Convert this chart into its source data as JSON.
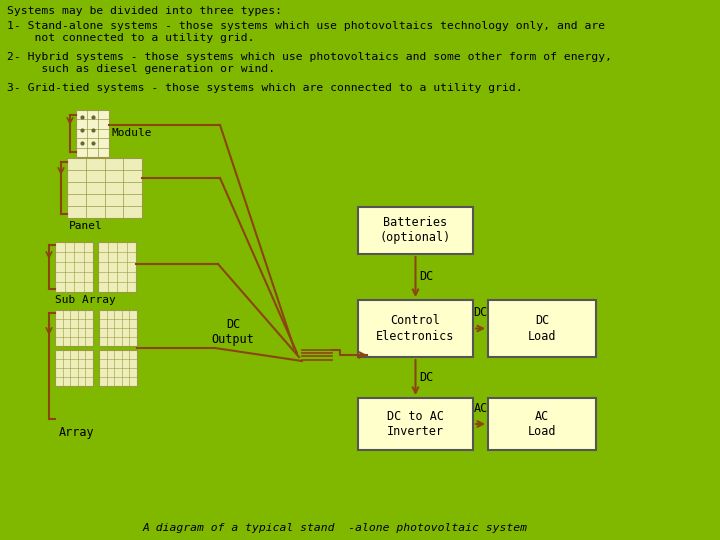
{
  "bg_color": "#80B800",
  "text_color": "#000000",
  "box_fill": "#FFFFCC",
  "brown": "#8B4513",
  "title_text": "Systems may be divided into three types:",
  "line1a": "1- Stand-alone systems - those systems which use photovoltaics technology only, and are",
  "line1b": "    not connected to a utility grid.",
  "line2a": "2- Hybrid systems - those systems which use photovoltaics and some other form of energy,",
  "line2b": "     such as diesel generation or wind.",
  "line3": "3- Grid-tied systems - those systems which are connected to a utility grid.",
  "caption": "A diagram of a typical stand  -alone photovoltaic system",
  "figsize": [
    7.2,
    5.4
  ],
  "dpi": 100
}
